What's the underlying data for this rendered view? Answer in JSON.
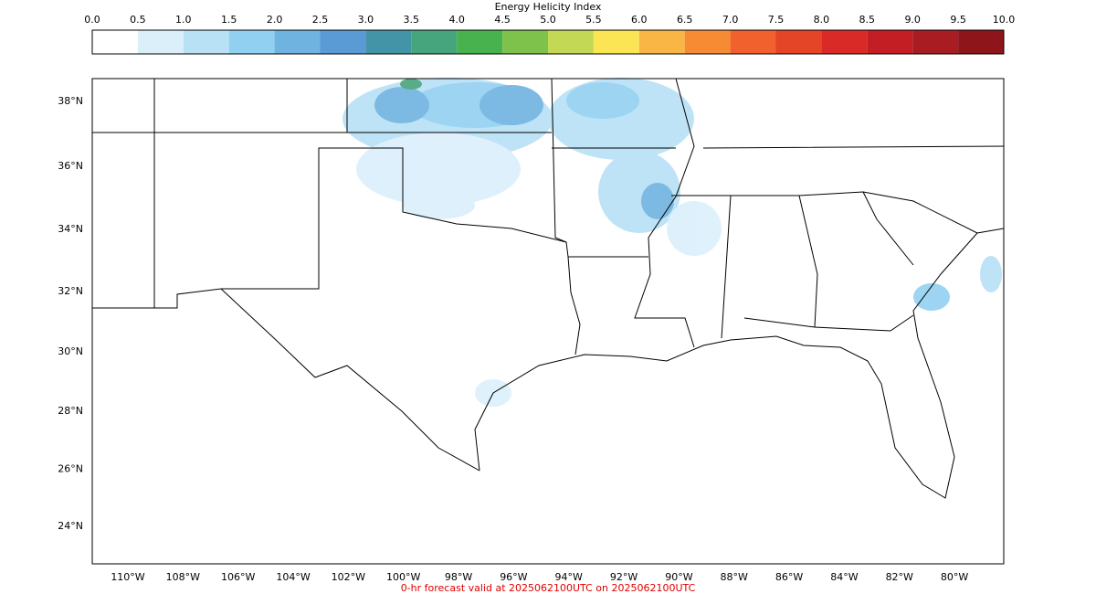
{
  "colorbar": {
    "title": "Energy Helicity Index",
    "ticks": [
      {
        "value": 0,
        "label": "0.0"
      },
      0.5,
      {
        "value": 1,
        "label": "1.0"
      },
      1.5,
      {
        "value": 2,
        "label": "2.0"
      },
      2.5,
      {
        "value": 3,
        "label": "3.0"
      },
      3.5,
      {
        "value": 4,
        "label": "4.0"
      },
      4.5,
      {
        "value": 5,
        "label": "5.0"
      },
      5.5,
      {
        "value": 6,
        "label": "6.0"
      },
      6.5,
      {
        "value": 7,
        "label": "7.0"
      },
      7.5,
      {
        "value": 8,
        "label": "8.0"
      },
      8.5,
      {
        "value": 9,
        "label": "9.0"
      },
      9.5,
      {
        "value": 10,
        "label": "10.0"
      }
    ],
    "colors": [
      "#ffffff",
      "#dbeffb",
      "#b8e1f6",
      "#92d0f1",
      "#6fb3e0",
      "#5a9bd5",
      "#4494a8",
      "#46a57c",
      "#48b24f",
      "#7fc24b",
      "#c3d955",
      "#fbe555",
      "#f9b644",
      "#f68b33",
      "#f0612d",
      "#e44526",
      "#da2a27",
      "#c41e25",
      "#a91c22",
      "#8e151a"
    ]
  },
  "map": {
    "lat_labels": [
      {
        "value": 38,
        "label": "38°N"
      },
      {
        "value": 36,
        "label": "36°N"
      },
      {
        "value": 34,
        "label": "34°N"
      },
      {
        "value": 32,
        "label": "32°N"
      },
      {
        "value": 30,
        "label": "30°N"
      },
      {
        "value": 28,
        "label": "28°N"
      },
      {
        "value": 26,
        "label": "26°N"
      },
      {
        "value": 24,
        "label": "24°N"
      }
    ],
    "lon_labels": [
      {
        "value": -110,
        "label": "110°W"
      },
      {
        "value": -108,
        "label": "108°W"
      },
      {
        "value": -106,
        "label": "106°W"
      },
      {
        "value": -104,
        "label": "104°W"
      },
      {
        "value": -102,
        "label": "102°W"
      },
      {
        "value": -100,
        "label": "100°W"
      },
      {
        "value": -98,
        "label": "98°W"
      },
      {
        "value": -96,
        "label": "96°W"
      },
      {
        "value": -94,
        "label": "94°W"
      },
      {
        "value": -92,
        "label": "92°W"
      },
      {
        "value": -90,
        "label": "90°W"
      },
      {
        "value": -88,
        "label": "88°W"
      },
      {
        "value": -86,
        "label": "86°W"
      },
      {
        "value": -84,
        "label": "84°W"
      },
      {
        "value": -82,
        "label": "82°W"
      },
      {
        "value": -80,
        "label": "80°W"
      }
    ]
  },
  "footer": "0-hr forecast valid at 2025062100UTC on 2025062100UTC"
}
